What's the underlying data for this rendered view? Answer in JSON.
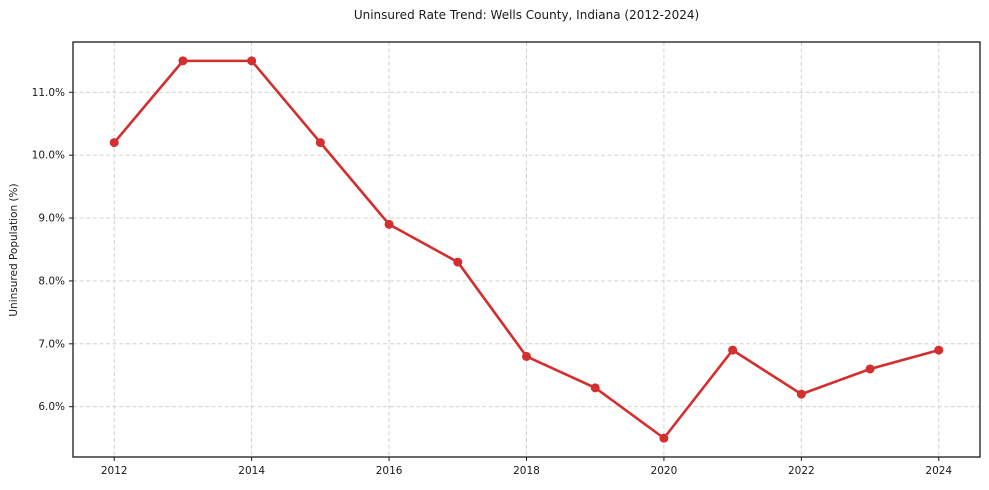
{
  "chart_data": {
    "type": "line",
    "title": "Uninsured Rate Trend: Wells County, Indiana (2012-2024)",
    "xlabel": "",
    "ylabel": "Uninsured Population (%)",
    "series_name": "Uninsured Rate",
    "x": [
      2012,
      2013,
      2014,
      2015,
      2016,
      2017,
      2018,
      2019,
      2020,
      2021,
      2022,
      2023,
      2024
    ],
    "values": [
      10.2,
      11.5,
      11.5,
      10.2,
      8.9,
      8.3,
      6.8,
      6.3,
      5.5,
      6.9,
      6.2,
      6.6,
      6.9
    ],
    "xlim": [
      2011.4,
      2024.6
    ],
    "ylim": [
      5.2,
      11.8
    ],
    "x_ticks": [
      2012,
      2014,
      2016,
      2018,
      2020,
      2022,
      2024
    ],
    "x_tick_labels": [
      "2012",
      "2014",
      "2016",
      "2018",
      "2020",
      "2022",
      "2024"
    ],
    "y_ticks": [
      6.0,
      7.0,
      8.0,
      9.0,
      10.0,
      11.0
    ],
    "y_tick_labels": [
      "6.0%",
      "7.0%",
      "8.0%",
      "9.0%",
      "10.0%",
      "11.0%"
    ],
    "grid": true,
    "grid_style": "dashed",
    "legend": "none",
    "line_color": "#d32f2f",
    "marker": "circle",
    "background_color": "#ffffff",
    "text_color": "#1a1a1a",
    "grid_color": "#cccccc"
  }
}
